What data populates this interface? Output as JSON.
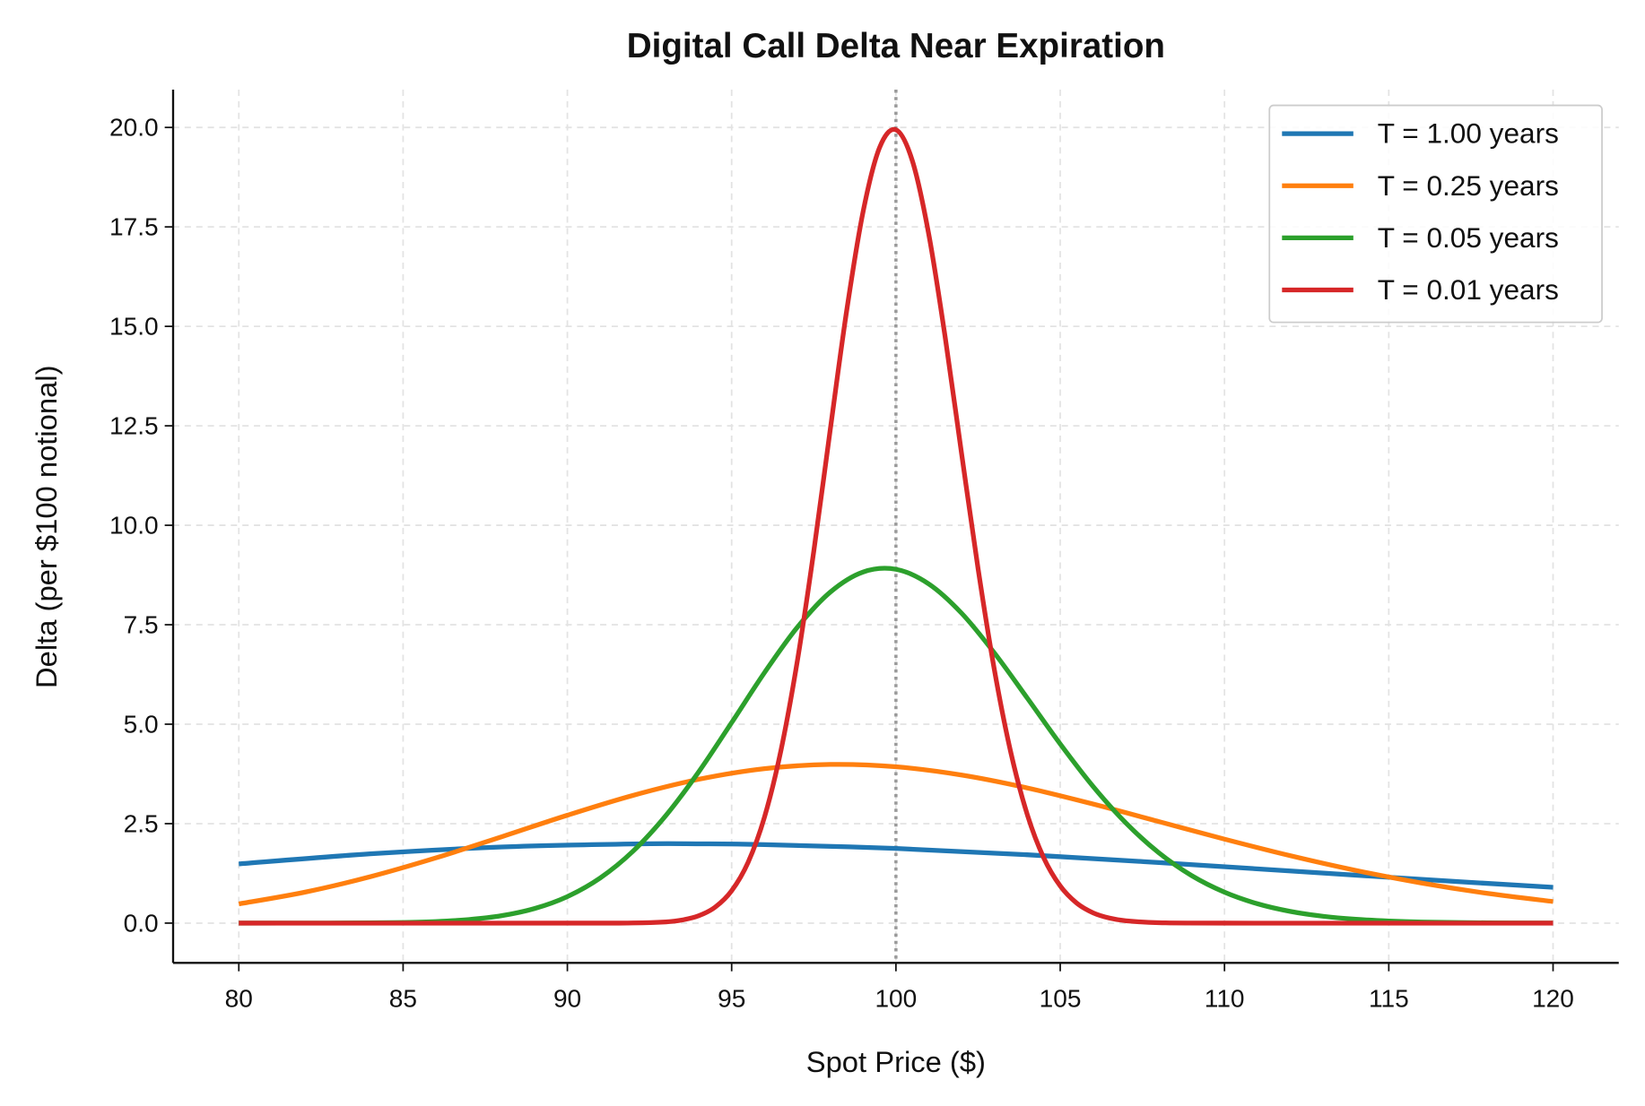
{
  "chart_data": {
    "type": "line",
    "title": "Digital Call Delta Near Expiration",
    "xlabel": "Spot Price ($)",
    "ylabel": "Delta (per $100 notional)",
    "xlim": [
      78,
      122
    ],
    "ylim": [
      -1,
      20.95
    ],
    "xticks": [
      80,
      85,
      90,
      95,
      100,
      105,
      110,
      115,
      120
    ],
    "xtick_labels": [
      "80",
      "85",
      "90",
      "95",
      "100",
      "105",
      "110",
      "115",
      "120"
    ],
    "yticks": [
      0,
      2.5,
      5,
      7.5,
      10,
      12.5,
      15,
      17.5,
      20
    ],
    "ytick_labels": [
      "0.0",
      "2.5",
      "5.0",
      "7.5",
      "10.0",
      "12.5",
      "15.0",
      "17.5",
      "20.0"
    ],
    "grid": true,
    "legend_position": "top-right",
    "reference_line": {
      "x": 100,
      "style": "dotted",
      "color": "#999999"
    },
    "series": [
      {
        "name": "T = 1.00 years",
        "color": "#1f77b4",
        "x": [
          80,
          84,
          88,
          92,
          94,
          96,
          100,
          104,
          108,
          112,
          116,
          120
        ],
        "y": [
          1.488,
          1.741,
          1.913,
          1.99,
          1.993,
          1.973,
          1.876,
          1.718,
          1.522,
          1.311,
          1.099,
          0.9
        ]
      },
      {
        "name": "T = 0.25 years",
        "color": "#ff7f0e",
        "x": [
          80,
          82,
          84,
          86,
          88,
          90,
          92,
          94,
          96,
          98,
          100,
          102,
          104,
          106,
          108,
          110,
          112,
          114,
          116,
          118,
          120
        ],
        "y": [
          0.482,
          0.776,
          1.166,
          1.64,
          2.17,
          2.712,
          3.211,
          3.615,
          3.882,
          3.988,
          3.929,
          3.721,
          3.397,
          2.993,
          2.553,
          2.111,
          1.695,
          1.324,
          1.007,
          0.747,
          0.542
        ]
      },
      {
        "name": "T = 0.05 years",
        "color": "#2ca02c",
        "x": [
          80,
          82,
          84,
          85,
          86,
          87,
          88,
          89,
          90,
          91,
          92,
          93,
          94,
          95,
          96,
          97,
          98,
          99,
          100,
          101,
          102,
          103,
          104,
          105,
          106,
          107,
          108,
          109,
          110,
          111,
          112,
          113,
          114,
          115,
          116,
          118,
          120
        ],
        "y": [
          0.0,
          0.001,
          0.006,
          0.016,
          0.039,
          0.089,
          0.187,
          0.366,
          0.667,
          1.135,
          1.809,
          2.707,
          3.805,
          5.04,
          6.297,
          7.437,
          8.319,
          8.825,
          8.893,
          8.525,
          7.788,
          6.787,
          5.653,
          4.503,
          3.436,
          2.516,
          1.768,
          1.194,
          0.777,
          0.487,
          0.294,
          0.172,
          0.097,
          0.053,
          0.028,
          0.007,
          0.002
        ]
      },
      {
        "name": "T = 0.01 years",
        "color": "#d62728",
        "x": [
          80,
          90,
          92,
          93,
          93.5,
          94,
          94.5,
          95,
          95.5,
          96,
          96.5,
          97,
          97.5,
          98,
          98.5,
          99,
          99.5,
          100,
          100.5,
          101,
          101.5,
          102,
          102.5,
          103,
          103.5,
          104,
          104.5,
          105,
          105.5,
          106,
          106.5,
          107,
          108,
          110,
          120
        ],
        "y": [
          0.0,
          0.0,
          0.004,
          0.031,
          0.079,
          0.185,
          0.403,
          0.814,
          1.527,
          2.667,
          4.34,
          6.594,
          9.35,
          12.4,
          15.39,
          17.88,
          19.49,
          19.94,
          19.16,
          17.31,
          14.72,
          11.79,
          8.91,
          6.35,
          4.276,
          2.722,
          1.638,
          0.934,
          0.504,
          0.258,
          0.126,
          0.058,
          0.011,
          0.0,
          0.0
        ]
      }
    ]
  }
}
